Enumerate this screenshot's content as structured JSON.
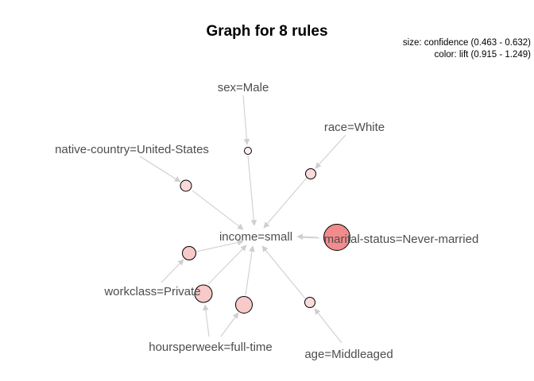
{
  "graph": {
    "title": "Graph for 8 rules",
    "legend_size": "size: confidence (0.463 - 0.632)",
    "legend_color": "color: lift (0.915 - 1.249)",
    "items": [
      {
        "id": "sex",
        "label": "sex=Male"
      },
      {
        "id": "race",
        "label": "race=White"
      },
      {
        "id": "native_country",
        "label": "native-country=United-States"
      },
      {
        "id": "income",
        "label": "income=small"
      },
      {
        "id": "marital",
        "label": "marital-status=Never-married"
      },
      {
        "id": "workclass",
        "label": "workclass=Private"
      },
      {
        "id": "hours",
        "label": "hoursperweek=full-time"
      },
      {
        "id": "age",
        "label": "age=Middleaged"
      }
    ],
    "rule_node_colors": {
      "low_lift": "#fbdada",
      "mid_lift": "#f8c9c9",
      "high_lift": "#f28b8b",
      "pale": "#fdeeee"
    }
  }
}
